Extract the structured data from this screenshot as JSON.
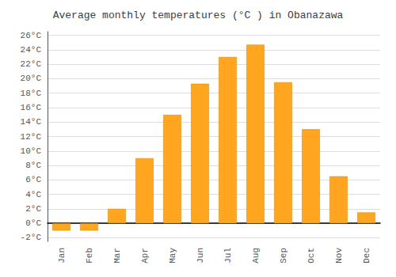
{
  "chart_data": {
    "type": "bar",
    "title": "Average monthly temperatures (°C ) in Obanazawa",
    "categories": [
      "Jan",
      "Feb",
      "Mar",
      "Apr",
      "May",
      "Jun",
      "Jul",
      "Aug",
      "Sep",
      "Oct",
      "Nov",
      "Dec"
    ],
    "values": [
      -1.0,
      -1.0,
      2.0,
      9.0,
      15.0,
      19.3,
      23.0,
      24.7,
      19.5,
      13.0,
      6.5,
      1.5
    ],
    "color": "#FFA520",
    "ylim": [
      -2.5,
      26.5
    ],
    "yticks": [
      {
        "value": -2,
        "label": "-2°C"
      },
      {
        "value": 0,
        "label": "0°C"
      },
      {
        "value": 2,
        "label": "2°C"
      },
      {
        "value": 4,
        "label": "4°C"
      },
      {
        "value": 6,
        "label": "6°C"
      },
      {
        "value": 8,
        "label": "8°C"
      },
      {
        "value": 10,
        "label": "10°C"
      },
      {
        "value": 12,
        "label": "12°C"
      },
      {
        "value": 14,
        "label": "14°C"
      },
      {
        "value": 16,
        "label": "16°C"
      },
      {
        "value": 18,
        "label": "18°C"
      },
      {
        "value": 20,
        "label": "20°C"
      },
      {
        "value": 22,
        "label": "22°C"
      },
      {
        "value": 24,
        "label": "24°C"
      },
      {
        "value": 26,
        "label": "26°C"
      }
    ],
    "grid": true
  }
}
